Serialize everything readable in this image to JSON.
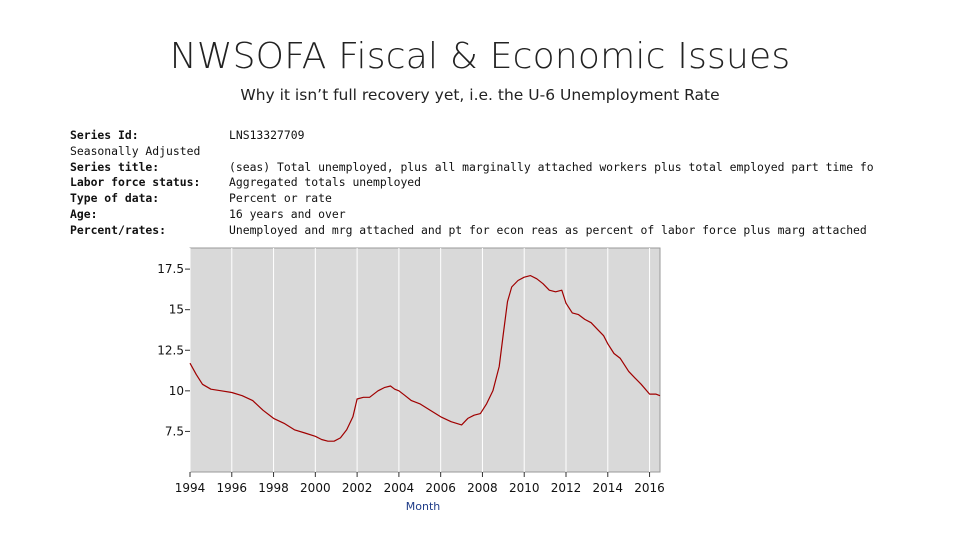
{
  "slide": {
    "title": "NWSOFA Fiscal & Economic Issues",
    "subtitle": "Why it isn’t full recovery yet, i.e. the U-6 Unemployment Rate"
  },
  "series_info": [
    {
      "key": "Series Id:",
      "value": "LNS13327709",
      "bold": true
    },
    {
      "key": "Seasonally Adjusted",
      "value": "",
      "bold": false
    },
    {
      "key": "Series title:",
      "value": "(seas) Total unemployed, plus all marginally attached workers plus total employed part time fo",
      "bold": true
    },
    {
      "key": "Labor force status:",
      "value": "Aggregated totals unemployed",
      "bold": true
    },
    {
      "key": "Type of data:",
      "value": "Percent or rate",
      "bold": true
    },
    {
      "key": "Age:",
      "value": "16 years and over",
      "bold": true
    },
    {
      "key": "Percent/rates:",
      "value": "Unemployed and mrg attached and pt for econ reas as percent of labor force plus marg attached",
      "bold": true
    }
  ],
  "chart_data": {
    "type": "line",
    "title": "",
    "xlabel": "Month",
    "ylabel": "",
    "xlim": [
      1994.0,
      2016.5
    ],
    "ylim": [
      5.0,
      18.8
    ],
    "yticks": [
      7.5,
      10,
      12.5,
      15,
      17.5
    ],
    "ytick_labels": [
      "7.5",
      "10",
      "12.5",
      "15",
      "17.5"
    ],
    "xticks": [
      1994,
      1996,
      1998,
      2000,
      2002,
      2004,
      2006,
      2008,
      2010,
      2012,
      2014,
      2016
    ],
    "xtick_labels": [
      "1994",
      "1996",
      "1998",
      "2000",
      "2002",
      "2004",
      "2006",
      "2008",
      "2010",
      "2012",
      "2014",
      "2016"
    ],
    "grid": "vertical",
    "background": "#d9d9d9",
    "line_color": "#a00000",
    "series": [
      {
        "x": [
          1994.0,
          1994.3,
          1994.6,
          1995.0,
          1995.5,
          1996.0,
          1996.5,
          1997.0,
          1997.5,
          1998.0,
          1998.5,
          1999.0,
          1999.5,
          2000.0,
          2000.3,
          2000.6,
          2000.9,
          2001.2,
          2001.5,
          2001.8,
          2002.0,
          2002.3,
          2002.6,
          2003.0,
          2003.3,
          2003.6,
          2003.8,
          2004.0,
          2004.3,
          2004.6,
          2005.0,
          2005.5,
          2006.0,
          2006.5,
          2007.0,
          2007.3,
          2007.6,
          2007.9,
          2008.2,
          2008.5,
          2008.8,
          2009.0,
          2009.2,
          2009.4,
          2009.7,
          2010.0,
          2010.3,
          2010.6,
          2010.9,
          2011.2,
          2011.5,
          2011.8,
          2012.0,
          2012.3,
          2012.6,
          2012.9,
          2013.2,
          2013.5,
          2013.8,
          2014.0,
          2014.3,
          2014.6,
          2015.0,
          2015.3,
          2015.6,
          2016.0,
          2016.3,
          2016.5
        ],
        "y": [
          11.7,
          11.0,
          10.4,
          10.1,
          10.0,
          9.9,
          9.7,
          9.4,
          8.8,
          8.3,
          8.0,
          7.6,
          7.4,
          7.2,
          7.0,
          6.9,
          6.9,
          7.1,
          7.6,
          8.4,
          9.5,
          9.6,
          9.6,
          10.0,
          10.2,
          10.3,
          10.1,
          10.0,
          9.7,
          9.4,
          9.2,
          8.8,
          8.4,
          8.1,
          7.9,
          8.3,
          8.5,
          8.6,
          9.2,
          10.0,
          11.5,
          13.5,
          15.5,
          16.4,
          16.8,
          17.0,
          17.1,
          16.9,
          16.6,
          16.2,
          16.1,
          16.2,
          15.4,
          14.8,
          14.7,
          14.4,
          14.2,
          13.8,
          13.4,
          12.9,
          12.3,
          12.0,
          11.2,
          10.8,
          10.4,
          9.8,
          9.8,
          9.7
        ]
      }
    ]
  }
}
